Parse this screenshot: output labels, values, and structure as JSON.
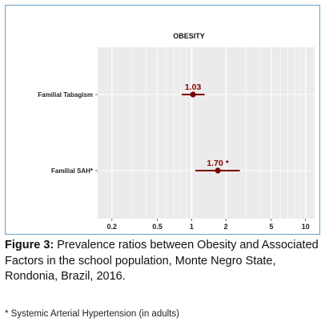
{
  "figure": {
    "caption_label": "Figure 3:",
    "caption_text": "Prevalence ratios between Obesity and Associated Factors in the school population, Monte Negro State, Rondonia, Brazil, 2016.",
    "footnote": "* Systemic Arterial Hypertension (in adults)"
  },
  "chart_data": {
    "type": "scatter",
    "subtype": "forest-plot",
    "title": "OBESITY",
    "xscale": "log",
    "xlim": [
      0.15,
      12
    ],
    "xticks": [
      0.2,
      0.5,
      1,
      2,
      5,
      10
    ],
    "xtick_labels": [
      "0.2",
      "0.5",
      "1",
      "2",
      "5",
      "10"
    ],
    "reference_line": 1,
    "grid": true,
    "categories": [
      "Familial Tabagism",
      "Familial SAH*"
    ],
    "values": [
      1.03,
      1.7
    ],
    "ci_lower": [
      0.82,
      1.08
    ],
    "ci_upper": [
      1.3,
      2.65
    ],
    "value_labels": [
      "1.03",
      "1.70 *"
    ],
    "colors": {
      "panel": "#ebebeb",
      "grid": "#ffffff",
      "point": "#7a0000",
      "label": "#8b0000"
    }
  }
}
